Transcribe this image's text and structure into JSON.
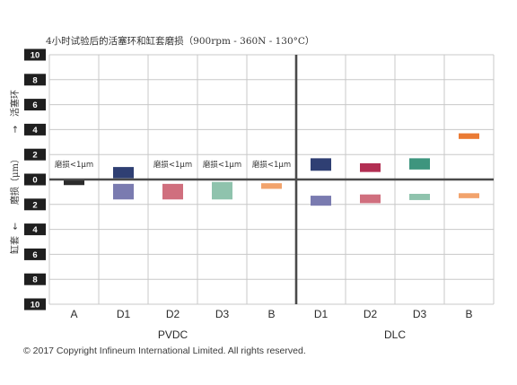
{
  "chart_data": {
    "type": "bar",
    "title": "4小时试验后的活塞环和缸套磨损（900rpm - 360N - 130°C）",
    "ylabel": "磨损（μm）",
    "ylabel_up": "活塞环",
    "ylabel_down": "缸套",
    "up_arrow": "→",
    "down_arrow": "←",
    "ylim": [
      -10,
      10
    ],
    "y_ticks": [
      {
        "value": 10,
        "label": "10"
      },
      {
        "value": 8,
        "label": "8"
      },
      {
        "value": 6,
        "label": "6"
      },
      {
        "value": 4,
        "label": "4"
      },
      {
        "value": 2,
        "label": "2"
      },
      {
        "value": 0,
        "label": "0"
      },
      {
        "value": -2,
        "label": "2"
      },
      {
        "value": -4,
        "label": "4"
      },
      {
        "value": -6,
        "label": "6"
      },
      {
        "value": -8,
        "label": "8"
      },
      {
        "value": -10,
        "label": "10"
      }
    ],
    "categories": [
      "A",
      "D1",
      "D2",
      "D3",
      "B",
      "D1",
      "D2",
      "D3",
      "B"
    ],
    "groups": [
      {
        "label": "PVDC",
        "start": 0,
        "end": 4
      },
      {
        "label": "DLC",
        "start": 5,
        "end": 8
      }
    ],
    "grid": true,
    "bars": [
      {
        "category": 0,
        "kind": "liner",
        "y0": -0.05,
        "y1": -0.45,
        "color": "#2b2b2b"
      },
      {
        "category": 1,
        "kind": "ring",
        "y0": 0.1,
        "y1": 1.0,
        "color": "#2f3f73"
      },
      {
        "category": 1,
        "kind": "liner",
        "y0": -0.35,
        "y1": -1.6,
        "color": "#7a7bb0"
      },
      {
        "category": 2,
        "kind": "liner",
        "y0": -0.35,
        "y1": -1.6,
        "color": "#d06f7e"
      },
      {
        "category": 3,
        "kind": "liner",
        "y0": -0.2,
        "y1": -1.6,
        "color": "#8fc3ad"
      },
      {
        "category": 4,
        "kind": "liner",
        "y0": -0.3,
        "y1": -0.75,
        "color": "#f2a36c"
      },
      {
        "category": 5,
        "kind": "ring",
        "y0": 0.7,
        "y1": 1.7,
        "color": "#2f3f73"
      },
      {
        "category": 5,
        "kind": "liner",
        "y0": -1.3,
        "y1": -2.1,
        "color": "#7a7bb0"
      },
      {
        "category": 6,
        "kind": "ring",
        "y0": 0.6,
        "y1": 1.3,
        "color": "#b22f53"
      },
      {
        "category": 6,
        "kind": "liner",
        "y0": -1.2,
        "y1": -1.9,
        "color": "#d06f7e"
      },
      {
        "category": 7,
        "kind": "ring",
        "y0": 0.8,
        "y1": 1.7,
        "color": "#3e957e"
      },
      {
        "category": 7,
        "kind": "liner",
        "y0": -1.15,
        "y1": -1.65,
        "color": "#8fc3ad"
      },
      {
        "category": 8,
        "kind": "ring",
        "y0": 3.25,
        "y1": 3.7,
        "color": "#ea7a33"
      },
      {
        "category": 8,
        "kind": "liner",
        "y0": -1.1,
        "y1": -1.5,
        "color": "#f2a36c"
      }
    ],
    "annotations": [
      {
        "category": 0,
        "text": "磨损<1μm"
      },
      {
        "category": 2,
        "text": "磨损<1μm"
      },
      {
        "category": 3,
        "text": "磨损<1μm"
      },
      {
        "category": 4,
        "text": "磨损<1μm"
      }
    ]
  },
  "footer": {
    "copyright": "© 2017 Copyright Infineum International Limited. All rights reserved."
  }
}
